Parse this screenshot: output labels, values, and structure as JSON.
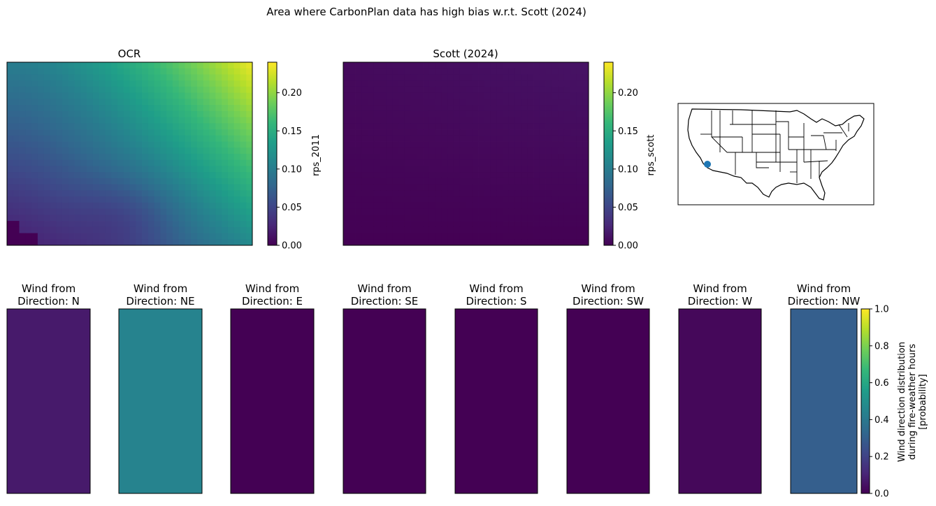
{
  "suptitle": "Area where CarbonPlan data has high bias w.r.t. Scott (2024)",
  "colors": {
    "viridis": [
      "#440154",
      "#482878",
      "#3e4989",
      "#31688e",
      "#26828e",
      "#1f9e89",
      "#35b779",
      "#6ece58",
      "#b5de2b",
      "#fde725"
    ],
    "map_point": "#1f77b4"
  },
  "chart_data": [
    {
      "type": "heatmap",
      "title": "OCR",
      "colorbar_label": "rps_2011",
      "clim": [
        0,
        0.24
      ],
      "colorbar_ticks": [
        "0.00",
        "0.05",
        "0.10",
        "0.15",
        "0.20"
      ],
      "colorbar_tick_values": [
        0,
        0.05,
        0.1,
        0.15,
        0.2
      ],
      "grid": false,
      "description_of_field": "values rise toward top-right (~0.24), low (~0.02) near bottom-left and lower-center"
    },
    {
      "type": "heatmap",
      "title": "Scott (2024)",
      "colorbar_label": "rps_scott",
      "clim": [
        0,
        0.24
      ],
      "colorbar_ticks": [
        "0.00",
        "0.05",
        "0.10",
        "0.15",
        "0.20"
      ],
      "colorbar_tick_values": [
        0,
        0.05,
        0.1,
        0.15,
        0.2
      ],
      "grid": false,
      "approx_value_range": [
        0.0,
        0.02
      ]
    },
    {
      "type": "heatmap",
      "title": "",
      "colorbar_label": "Wind direction distribution\nduring fire-weather hours\n[probability]",
      "colorbar_label_lines": [
        "Wind direction distribution",
        "during fire-weather hours",
        "[probability]"
      ],
      "clim": [
        0,
        1
      ],
      "colorbar_ticks": [
        "0.0",
        "0.2",
        "0.4",
        "0.6",
        "0.8",
        "1.0"
      ],
      "colorbar_tick_values": [
        0,
        0.2,
        0.4,
        0.6,
        0.8,
        1.0
      ],
      "panels": [
        {
          "title_line1": "Wind from",
          "title_line2": "Direction: N",
          "value": 0.07
        },
        {
          "title_line1": "Wind from",
          "title_line2": "Direction: NE",
          "value": 0.45
        },
        {
          "title_line1": "Wind from",
          "title_line2": "Direction: E",
          "value": 0.0
        },
        {
          "title_line1": "Wind from",
          "title_line2": "Direction: SE",
          "value": 0.0
        },
        {
          "title_line1": "Wind from",
          "title_line2": "Direction: S",
          "value": 0.0
        },
        {
          "title_line1": "Wind from",
          "title_line2": "Direction: SW",
          "value": 0.0
        },
        {
          "title_line1": "Wind from",
          "title_line2": "Direction: W",
          "value": 0.02
        },
        {
          "title_line1": "Wind from",
          "title_line2": "Direction: NW",
          "value": 0.3
        }
      ]
    }
  ]
}
